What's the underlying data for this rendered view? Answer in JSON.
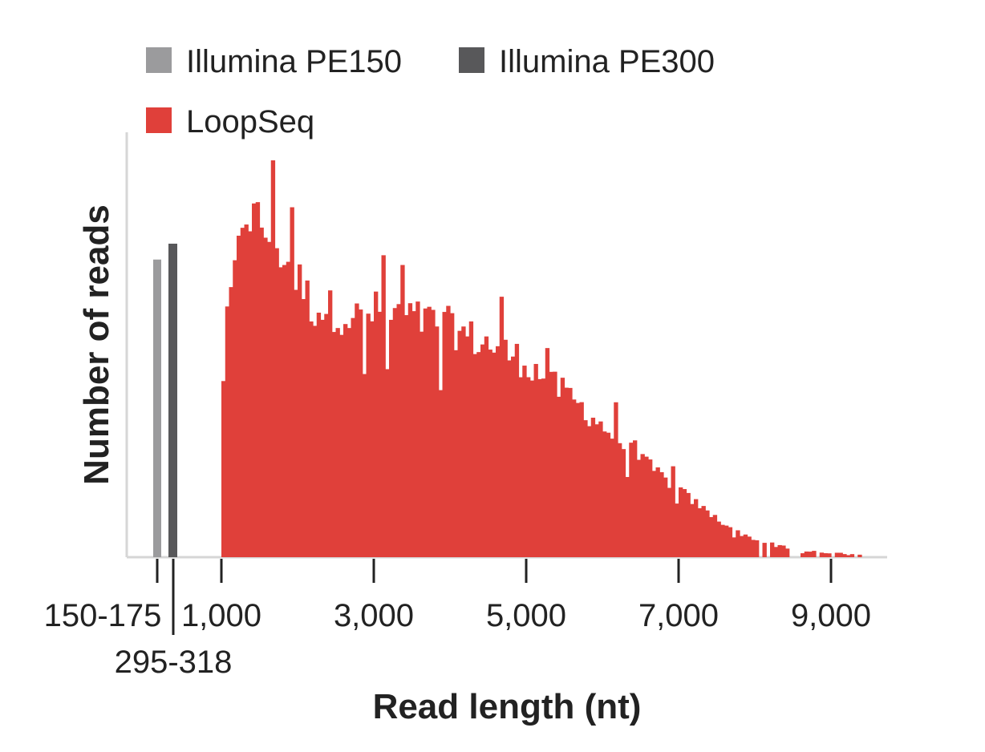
{
  "chart_data": {
    "type": "bar",
    "xlabel": "Read length (nt)",
    "ylabel": "Number of reads",
    "x_ticks": [
      {
        "value": 1000,
        "label": "1,000"
      },
      {
        "value": 3000,
        "label": "3,000"
      },
      {
        "value": 5000,
        "label": "5,000"
      },
      {
        "value": 7000,
        "label": "7,000"
      },
      {
        "value": 9000,
        "label": "9,000"
      }
    ],
    "ylim": [
      0,
      100
    ],
    "legend_placement": "top-left",
    "series": [
      {
        "name": "Illumina PE150",
        "color": "#9b9b9d",
        "category_label": "150-175",
        "value": 75
      },
      {
        "name": "Illumina PE300",
        "color": "#58585a",
        "category_label": "295-318",
        "value": 79
      },
      {
        "name": "LoopSeq",
        "color": "#e0403a",
        "x_start": 1000,
        "x_end": 9500,
        "x_step": 50,
        "profile": [
          [
            1000,
            40
          ],
          [
            1100,
            64
          ],
          [
            1200,
            72
          ],
          [
            1300,
            90
          ],
          [
            1400,
            85
          ],
          [
            1500,
            84
          ],
          [
            1600,
            82
          ],
          [
            1800,
            77
          ],
          [
            2000,
            70
          ],
          [
            2200,
            63
          ],
          [
            2500,
            62
          ],
          [
            2800,
            60
          ],
          [
            3000,
            62
          ],
          [
            3200,
            61
          ],
          [
            3500,
            60
          ],
          [
            3800,
            59
          ],
          [
            4000,
            58
          ],
          [
            4300,
            55
          ],
          [
            4600,
            53
          ],
          [
            4800,
            51
          ],
          [
            5000,
            49
          ],
          [
            5300,
            44
          ],
          [
            5600,
            40
          ],
          [
            6000,
            33
          ],
          [
            6300,
            28
          ],
          [
            6600,
            23
          ],
          [
            7000,
            17
          ],
          [
            7400,
            11
          ],
          [
            7800,
            6
          ],
          [
            8200,
            3
          ],
          [
            8600,
            1.5
          ],
          [
            9000,
            1
          ],
          [
            9500,
            0.5
          ]
        ],
        "peak_value": 100
      }
    ]
  }
}
